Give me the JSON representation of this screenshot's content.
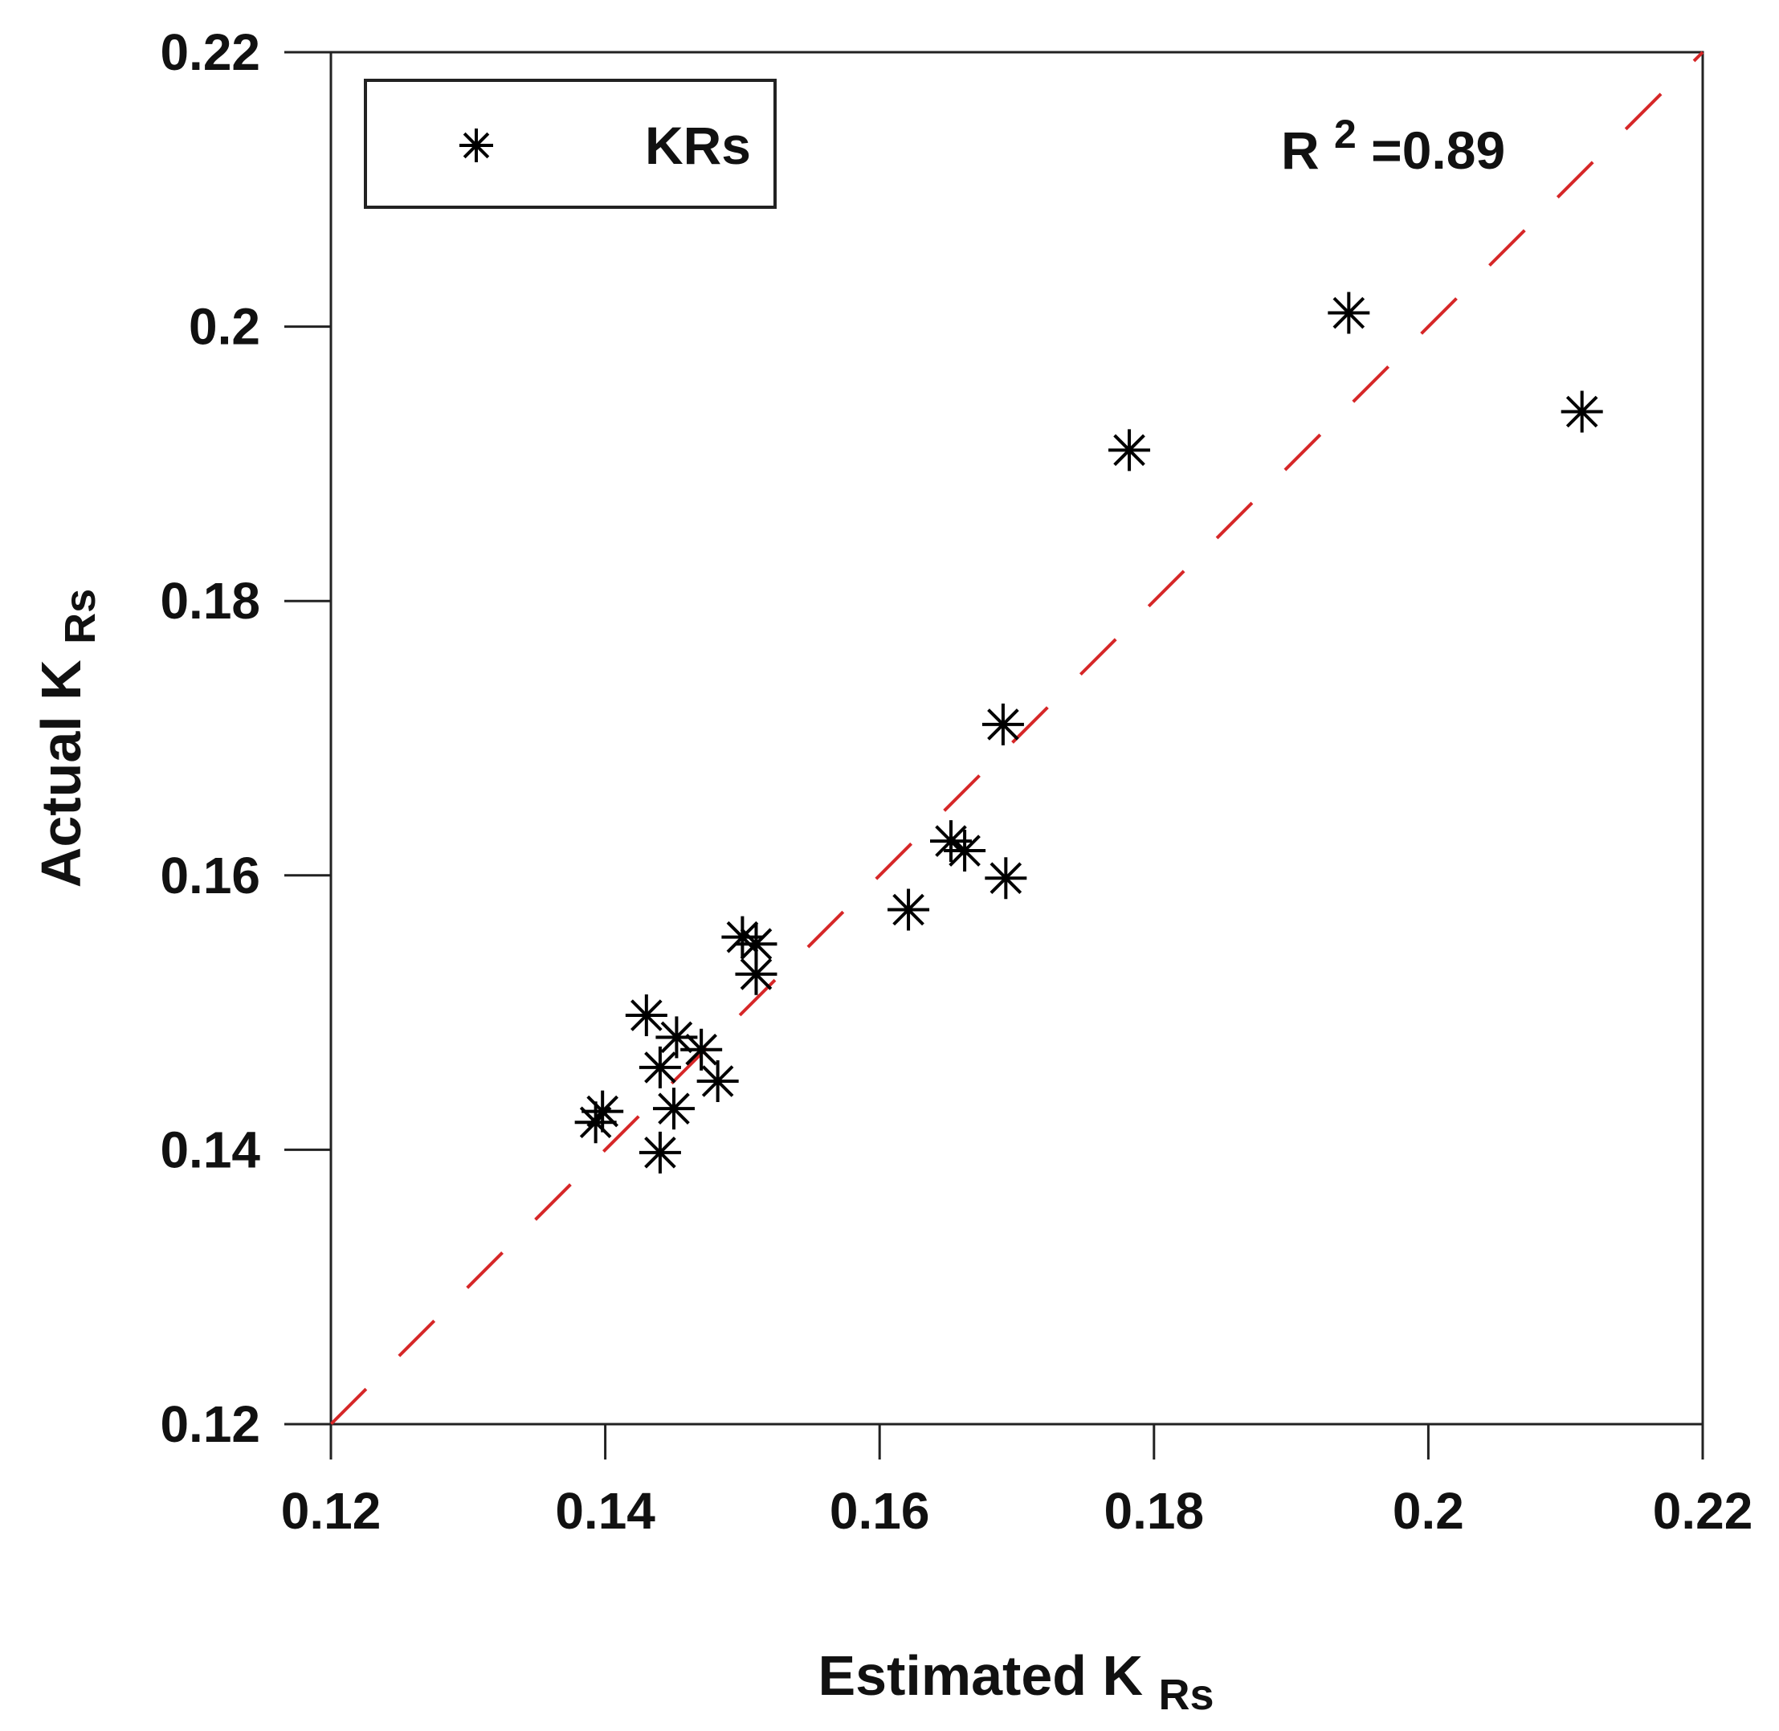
{
  "chart_data": {
    "type": "scatter",
    "title": "",
    "xlabel": {
      "prefix": "Estimated K",
      "subscript": "Rs"
    },
    "ylabel": {
      "prefix": "Actual K",
      "subscript": "Rs"
    },
    "xlim": [
      0.12,
      0.22
    ],
    "ylim": [
      0.12,
      0.22
    ],
    "xticks": [
      "0.12",
      "0.14",
      "0.16",
      "0.18",
      "0.2",
      "0.22"
    ],
    "yticks": [
      "0.12",
      "0.14",
      "0.16",
      "0.18",
      "0.2",
      "0.22"
    ],
    "tick_values": [
      0.12,
      0.14,
      0.16,
      0.18,
      0.2,
      0.22
    ],
    "grid": false,
    "legend": {
      "position": "top-left",
      "label": "KRs"
    },
    "annotation": {
      "base": "R",
      "sup": "2",
      "rest": "=0.89"
    },
    "reference_line": {
      "type": "y=x",
      "style": "dashed",
      "color": "#d62728"
    },
    "series": [
      {
        "name": "KRs",
        "marker": "asterisk",
        "color": "#000000",
        "points": [
          {
            "x": 0.1393,
            "y": 0.142
          },
          {
            "x": 0.1398,
            "y": 0.1428
          },
          {
            "x": 0.144,
            "y": 0.1398
          },
          {
            "x": 0.145,
            "y": 0.143
          },
          {
            "x": 0.144,
            "y": 0.146
          },
          {
            "x": 0.143,
            "y": 0.1498
          },
          {
            "x": 0.1452,
            "y": 0.1482
          },
          {
            "x": 0.147,
            "y": 0.1473
          },
          {
            "x": 0.1482,
            "y": 0.145
          },
          {
            "x": 0.15,
            "y": 0.1555
          },
          {
            "x": 0.151,
            "y": 0.155
          },
          {
            "x": 0.151,
            "y": 0.1528
          },
          {
            "x": 0.1621,
            "y": 0.1575
          },
          {
            "x": 0.1652,
            "y": 0.1625
          },
          {
            "x": 0.1662,
            "y": 0.1618
          },
          {
            "x": 0.1692,
            "y": 0.1598
          },
          {
            "x": 0.169,
            "y": 0.171
          },
          {
            "x": 0.1782,
            "y": 0.191
          },
          {
            "x": 0.1942,
            "y": 0.201
          },
          {
            "x": 0.2112,
            "y": 0.1938
          }
        ]
      }
    ]
  }
}
